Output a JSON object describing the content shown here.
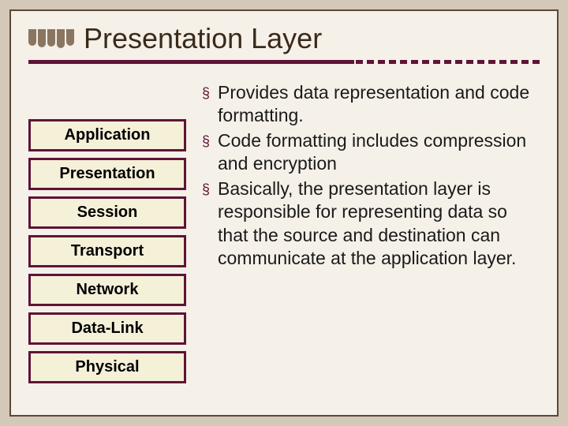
{
  "slide": {
    "title": "Presentation Layer",
    "accent_color": "#5e1436",
    "background_color": "#f5f0e8",
    "outer_background": "#d4c8b8",
    "border_color": "#5a4a3a",
    "layers": [
      "Application",
      "Presentation",
      "Session",
      "Transport",
      "Network",
      "Data-Link",
      "Physical"
    ],
    "layer_box": {
      "border_color": "#5e1436",
      "fill_color": "#f5f0d8",
      "font_family": "Arial",
      "font_size_pt": 15,
      "font_weight": "bold"
    },
    "bullets": [
      "Provides data representation and code formatting.",
      "Code formatting includes compression and encryption",
      "Basically, the presentation layer is responsible for representing data so that the source and destination can communicate at the application layer."
    ],
    "bullet_marker": "§",
    "bullet_marker_color": "#5e1436",
    "title_font": {
      "family": "Verdana",
      "size_pt": 27,
      "color": "#3a2a1a"
    },
    "body_font": {
      "family": "Verdana",
      "size_pt": 17,
      "color": "#1a1a1a"
    },
    "rule_dash_count": 17
  }
}
